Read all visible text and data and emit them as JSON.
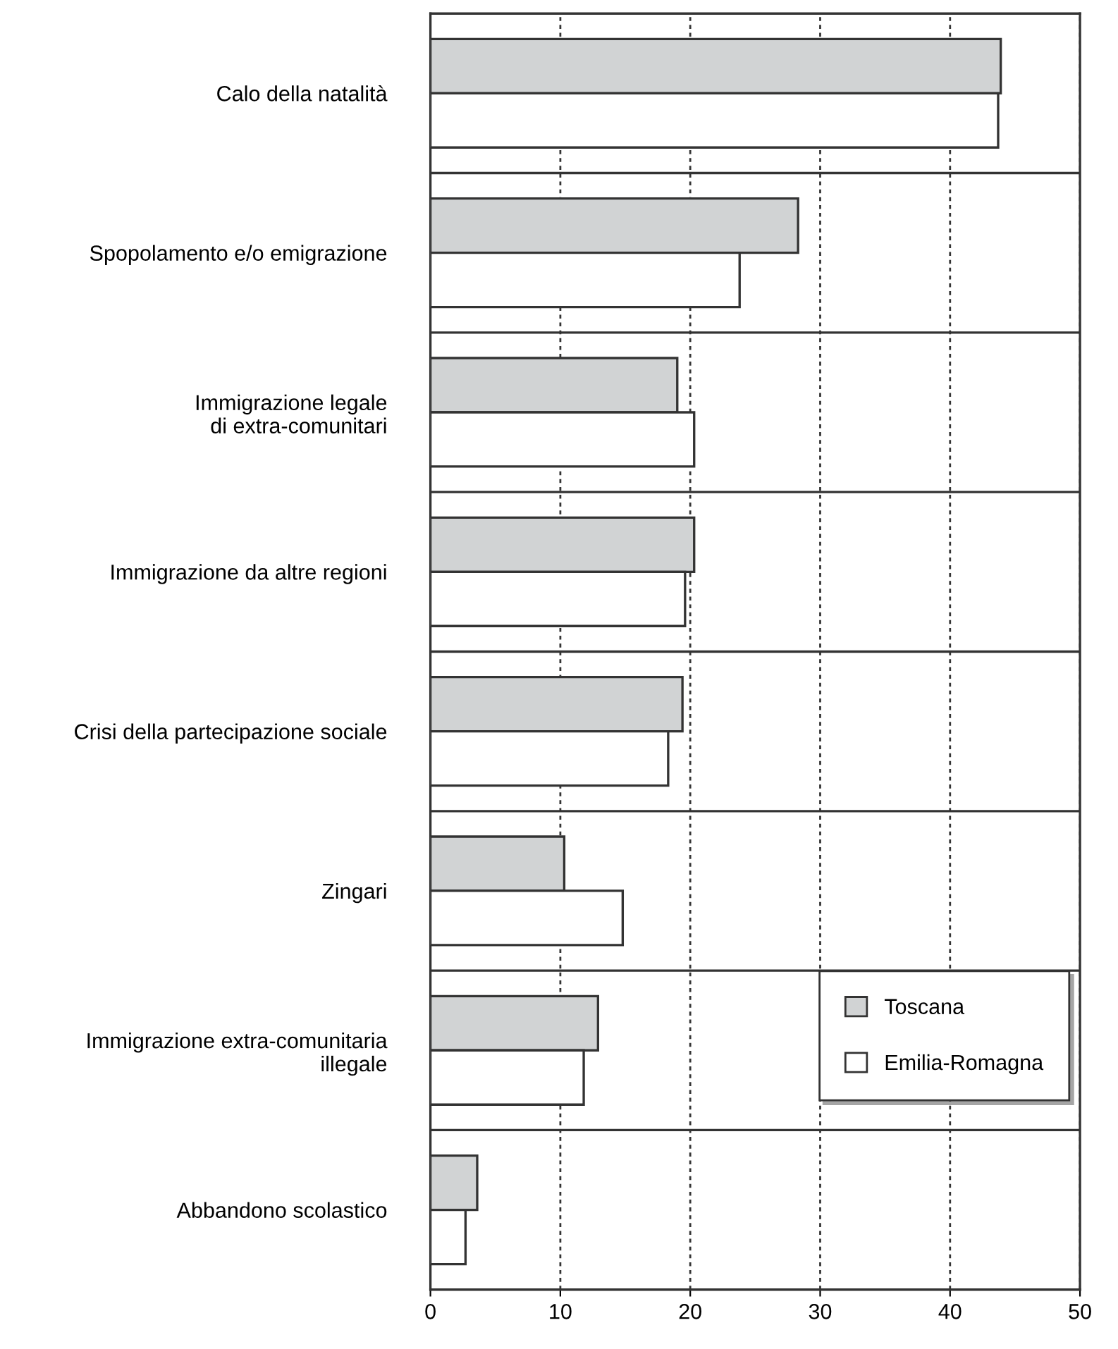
{
  "chart_data": {
    "type": "bar",
    "orientation": "horizontal",
    "categories": [
      "Calo della natalità",
      "Spopolamento e/o emigrazione",
      "Immigrazione legale\ndi extra-comunitari",
      "Immigrazione da altre regioni",
      "Crisi della partecipazione sociale",
      "Zingari",
      "Immigrazione extra-comunitaria\nillegale",
      "Abbandono scolastico"
    ],
    "series": [
      {
        "name": "Toscana",
        "color": "#d1d3d4",
        "values": [
          43.9,
          28.3,
          19.0,
          20.3,
          19.4,
          10.3,
          12.9,
          3.6
        ]
      },
      {
        "name": "Emilia-Romagna",
        "color": "#ffffff",
        "values": [
          43.7,
          23.8,
          20.3,
          19.6,
          18.3,
          14.8,
          11.8,
          2.7
        ]
      }
    ],
    "xlim": [
      0,
      50
    ],
    "xticks": [
      0,
      10,
      20,
      30,
      40,
      50
    ],
    "grid": "x",
    "legend": "bottom right"
  }
}
